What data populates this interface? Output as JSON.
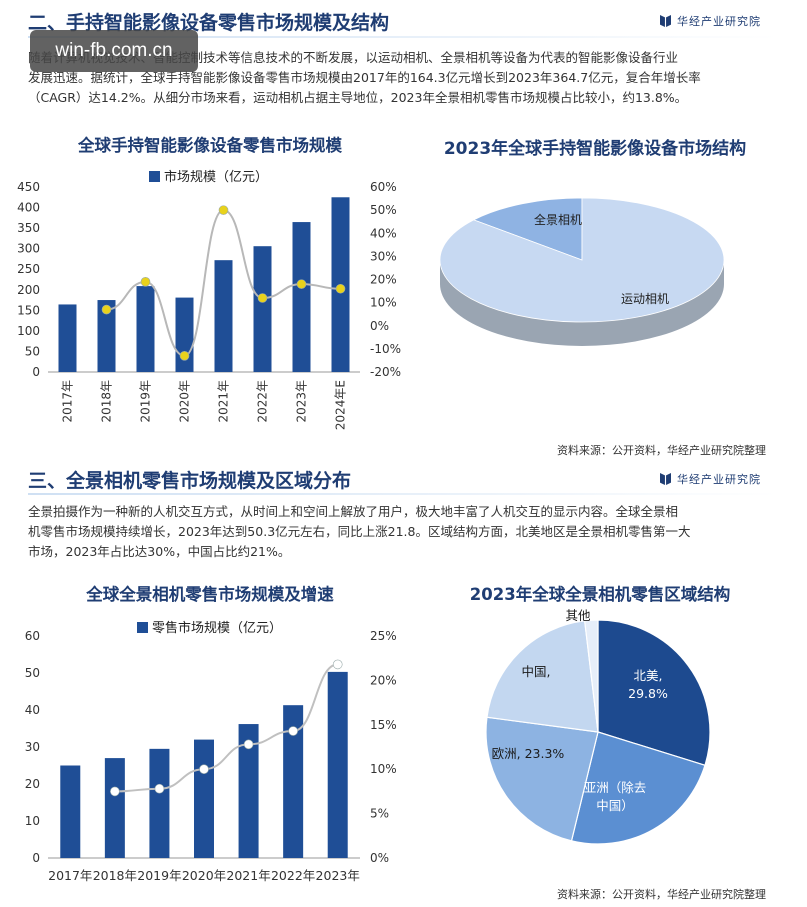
{
  "overlay": {
    "watermark": "win-fb.com.cn"
  },
  "brand": "华经产业研究院",
  "section2": {
    "title": "二、手持智能影像设备零售市场规模及结构",
    "paragraph_lines": [
      "随着计算机视觉技术、智能控制技术等信息技术的不断发展，以运动相机、全景相机等设备为代表的智能影像设备行业",
      "发展迅速。据统计，全球手持智能影像设备零售市场规模由2017年的164.3亿元增长到2023年364.7亿元，复合年增长率",
      "（CAGR）达14.2%。从细分市场来看，运动相机占据主导地位，2023年全景相机零售市场规模占比较小，约13.8%。"
    ],
    "source": "资料来源：公开资料，华经产业研究院整理"
  },
  "section3": {
    "title": "三、全景相机零售市场规模及区域分布",
    "paragraph_lines": [
      "全景拍摄作为一种新的人机交互方式，从时间上和空间上解放了用户，极大地丰富了人机交互的显示内容。全球全景相",
      "机零售市场规模持续增长，2023年达到50.3亿元左右，同比上涨21.8。区域结构方面，北美地区是全景相机零售第一大",
      "市场，2023年占比达30%，中国占比约21%。"
    ],
    "source": "资料来源：公开资料，华经产业研究院整理"
  },
  "chart_data": [
    {
      "id": "c1",
      "type": "bar",
      "title": "全球手持智能影像设备零售市场规模",
      "categories": [
        "2017年",
        "2018年",
        "2019年",
        "2020年",
        "2021年",
        "2022年",
        "2023年",
        "2024年E"
      ],
      "series": [
        {
          "name": "市场规模（亿元）",
          "values": [
            164.3,
            175,
            209,
            181,
            272,
            306,
            364.7,
            425
          ]
        },
        {
          "values": [
            null,
            7,
            19,
            -13,
            50,
            12,
            18,
            16
          ]
        }
      ],
      "ylim": [
        0,
        450
      ],
      "yticks": [
        "0",
        "50",
        "100",
        "150",
        "200",
        "250",
        "300",
        "350",
        "400",
        "450"
      ],
      "y2lim": [
        -20,
        60
      ],
      "y2ticks": [
        "-20%",
        "-10%",
        "0%",
        "10%",
        "20%",
        "30%",
        "40%",
        "50%",
        "60%"
      ],
      "legend": "top",
      "colors": {
        "bar": "#1f4e96",
        "line": "#b8b8b8",
        "marker": "#e8d21c"
      }
    },
    {
      "id": "c2",
      "type": "pie",
      "title": "2023年全球手持智能影像设备市场结构",
      "labels": [
        "全景相机",
        "运动相机"
      ],
      "values": [
        13.8,
        86.2
      ],
      "colors": [
        "#8fb3e3",
        "#c7d9f2"
      ]
    },
    {
      "id": "c3",
      "type": "bar",
      "title": "全球全景相机零售市场规模及增速",
      "categories": [
        "2017年",
        "2018年",
        "2019年",
        "2020年",
        "2021年",
        "2022年",
        "2023年"
      ],
      "series": [
        {
          "name": "零售市场规模（亿元）",
          "values": [
            25,
            27,
            29.5,
            32,
            36.2,
            41.3,
            50.3
          ]
        },
        {
          "values": [
            null,
            7.5,
            7.8,
            10,
            12.8,
            14.3,
            21.8
          ]
        }
      ],
      "ylim": [
        0,
        60
      ],
      "yticks": [
        "0",
        "10",
        "20",
        "30",
        "40",
        "50",
        "60"
      ],
      "y2lim": [
        0,
        25
      ],
      "y2ticks": [
        "0%",
        "5%",
        "10%",
        "15%",
        "20%",
        "25%"
      ],
      "legend": "top",
      "colors": {
        "bar": "#1f4e96",
        "line": "#c0c0c0",
        "marker": "#ffffff"
      }
    },
    {
      "id": "c4",
      "type": "pie",
      "title": "2023年全球全景相机零售区域结构",
      "slices": [
        {
          "label": "北美,",
          "value_label": "29.8%",
          "value": 29.8,
          "color": "#1d4a8f"
        },
        {
          "label": "亚洲（除去",
          "value_label": "中国）",
          "value": 24.0,
          "color": "#5b8fd2"
        },
        {
          "label": "欧洲, 23.3%",
          "value_label": "",
          "value": 23.3,
          "color": "#8db3e2"
        },
        {
          "label": "中国,",
          "value_label": "",
          "value": 21.0,
          "color": "#c3d7f0"
        },
        {
          "label": "其他",
          "value_label": "",
          "value": 1.9,
          "color": "#e6eef9"
        }
      ]
    }
  ]
}
